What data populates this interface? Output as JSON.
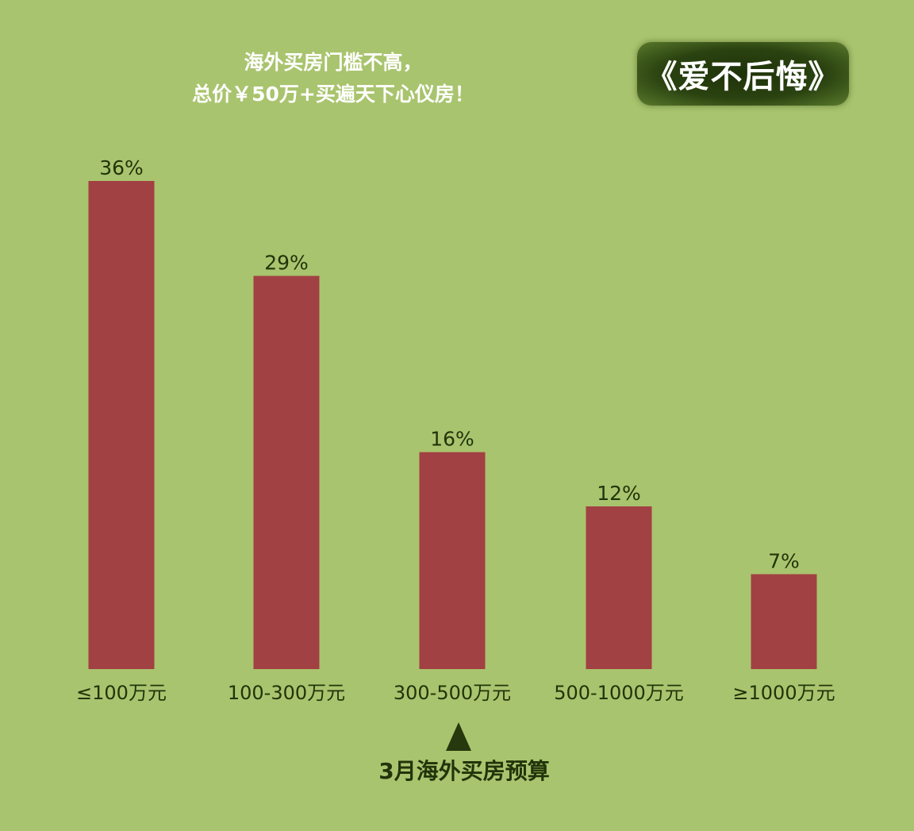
{
  "header": {
    "line1": "海外买房门槛不高，",
    "line2": "总价￥50万+买遍天下心仪房！",
    "badge": "《爱不后悔》"
  },
  "colors": {
    "background": "#a9c46e",
    "bar": "#a14143",
    "label": "#22340a",
    "badge_bg": "#2a4210"
  },
  "chart_data": {
    "type": "bar",
    "categories": [
      "≤100万元",
      "100-300万元",
      "300-500万元",
      "500-1000万元",
      "≥1000万元"
    ],
    "values": [
      36,
      29,
      16,
      12,
      7
    ],
    "value_labels": [
      "36%",
      "29%",
      "16%",
      "12%",
      "7%"
    ],
    "title": "",
    "xlabel": "3月海外买房预算",
    "ylabel": "",
    "ylim": [
      0,
      36
    ],
    "grid": false,
    "highlight_category": "300-500万元"
  }
}
